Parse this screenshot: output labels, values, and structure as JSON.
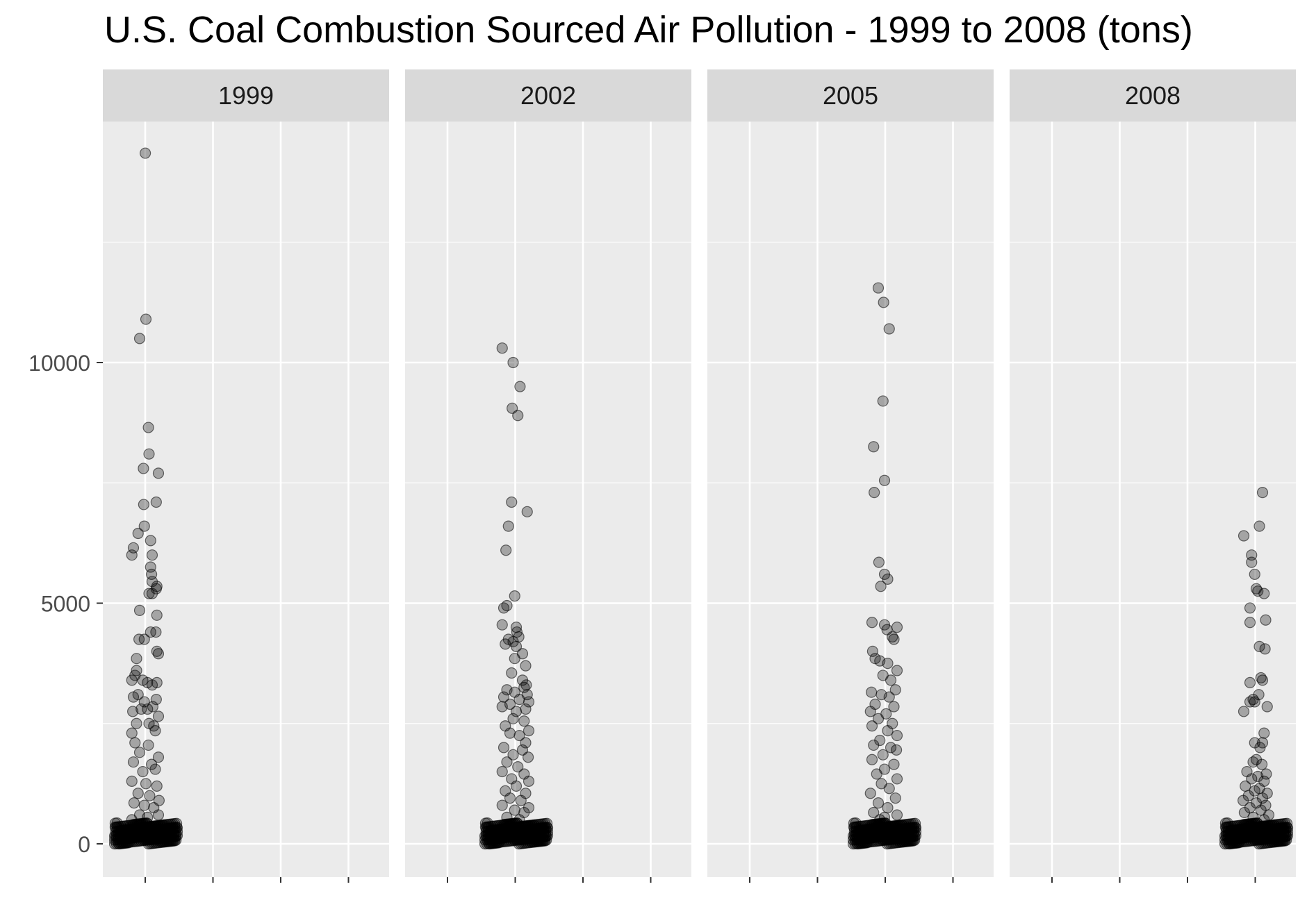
{
  "chart_data": {
    "type": "scatter",
    "title": "U.S. Coal Combustion Sourced Air Pollution - 1999 to 2008 (tons)",
    "xlabel": "",
    "ylabel": "",
    "facets": [
      "1999",
      "2002",
      "2005",
      "2008"
    ],
    "y_ticks": [
      0,
      5000,
      10000
    ],
    "y_tick_labels": [
      "0",
      "5000",
      "10000"
    ],
    "ylim": [
      -700,
      14900
    ],
    "grid": true,
    "point_color": "#000000",
    "point_opacity": 0.3,
    "panel_background": "#ebebeb",
    "strip_background": "#d9d9d9",
    "series": [
      {
        "facet": "1999",
        "points": [
          [
            -0.02,
            14350
          ],
          [
            -0.2,
            10500
          ],
          [
            0.0,
            10900
          ],
          [
            0.08,
            8650
          ],
          [
            0.1,
            8100
          ],
          [
            -0.08,
            7800
          ],
          [
            0.4,
            7700
          ],
          [
            -0.07,
            7050
          ],
          [
            0.33,
            7100
          ],
          [
            -0.05,
            6600
          ],
          [
            -0.25,
            6450
          ],
          [
            -0.4,
            6150
          ],
          [
            -0.45,
            6000
          ],
          [
            0.15,
            6300
          ],
          [
            0.2,
            6000
          ],
          [
            0.15,
            5750
          ],
          [
            0.18,
            5600
          ],
          [
            0.2,
            5450
          ],
          [
            0.35,
            5350
          ],
          [
            0.33,
            5300
          ],
          [
            0.1,
            5200
          ],
          [
            0.2,
            5200
          ],
          [
            0.35,
            4750
          ],
          [
            -0.2,
            4850
          ],
          [
            0.15,
            4400
          ],
          [
            0.32,
            4400
          ],
          [
            -0.22,
            4250
          ],
          [
            -0.05,
            4250
          ],
          [
            0.35,
            4000
          ],
          [
            0.4,
            3950
          ],
          [
            -0.3,
            3850
          ],
          [
            -0.35,
            3500
          ],
          [
            -0.3,
            3600
          ],
          [
            -0.45,
            3400
          ],
          [
            -0.1,
            3400
          ],
          [
            0.05,
            3350
          ],
          [
            0.2,
            3300
          ],
          [
            0.35,
            3350
          ],
          [
            -0.4,
            3050
          ],
          [
            -0.25,
            3100
          ],
          [
            -0.05,
            2950
          ],
          [
            0.33,
            3000
          ],
          [
            -0.42,
            2750
          ],
          [
            -0.15,
            2800
          ],
          [
            0.05,
            2800
          ],
          [
            0.22,
            2850
          ],
          [
            0.4,
            2650
          ],
          [
            -0.3,
            2500
          ],
          [
            0.1,
            2500
          ],
          [
            0.25,
            2450
          ],
          [
            -0.45,
            2300
          ],
          [
            0.3,
            2350
          ],
          [
            -0.35,
            2100
          ],
          [
            0.08,
            2050
          ],
          [
            -0.2,
            1900
          ],
          [
            0.4,
            1800
          ],
          [
            -0.4,
            1700
          ],
          [
            0.18,
            1650
          ],
          [
            -0.1,
            1500
          ],
          [
            0.3,
            1550
          ],
          [
            -0.45,
            1300
          ],
          [
            0.0,
            1250
          ],
          [
            0.35,
            1200
          ],
          [
            -0.25,
            1050
          ],
          [
            0.12,
            1000
          ],
          [
            0.42,
            900
          ],
          [
            -0.38,
            850
          ],
          [
            -0.05,
            800
          ],
          [
            0.25,
            750
          ],
          [
            -0.2,
            600
          ],
          [
            0.4,
            600
          ],
          [
            0.05,
            550
          ],
          [
            -0.45,
            500
          ]
        ]
      },
      {
        "facet": "2002",
        "points": [
          [
            -0.45,
            10300
          ],
          [
            -0.1,
            10000
          ],
          [
            0.12,
            9500
          ],
          [
            -0.13,
            9050
          ],
          [
            0.05,
            8900
          ],
          [
            -0.15,
            7100
          ],
          [
            0.35,
            6900
          ],
          [
            -0.25,
            6600
          ],
          [
            -0.33,
            6100
          ],
          [
            -0.05,
            5150
          ],
          [
            -0.3,
            4950
          ],
          [
            -0.4,
            4900
          ],
          [
            -0.45,
            4550
          ],
          [
            0.0,
            4500
          ],
          [
            0.02,
            4400
          ],
          [
            0.08,
            4300
          ],
          [
            -0.25,
            4250
          ],
          [
            -0.1,
            4200
          ],
          [
            -0.35,
            4150
          ],
          [
            0.0,
            4100
          ],
          [
            0.2,
            3950
          ],
          [
            -0.05,
            3850
          ],
          [
            0.3,
            3700
          ],
          [
            -0.15,
            3550
          ],
          [
            0.2,
            3400
          ],
          [
            0.32,
            3300
          ],
          [
            0.25,
            3250
          ],
          [
            -0.3,
            3200
          ],
          [
            -0.05,
            3150
          ],
          [
            0.35,
            3100
          ],
          [
            -0.4,
            3050
          ],
          [
            0.1,
            3000
          ],
          [
            0.4,
            2950
          ],
          [
            -0.2,
            2900
          ],
          [
            -0.45,
            2850
          ],
          [
            0.3,
            2800
          ],
          [
            0.0,
            2750
          ],
          [
            -0.1,
            2600
          ],
          [
            0.25,
            2550
          ],
          [
            -0.35,
            2450
          ],
          [
            0.4,
            2350
          ],
          [
            -0.2,
            2300
          ],
          [
            0.1,
            2250
          ],
          [
            0.3,
            2100
          ],
          [
            -0.4,
            2000
          ],
          [
            0.2,
            1950
          ],
          [
            -0.1,
            1850
          ],
          [
            0.38,
            1800
          ],
          [
            -0.3,
            1700
          ],
          [
            0.05,
            1600
          ],
          [
            -0.45,
            1500
          ],
          [
            0.25,
            1450
          ],
          [
            -0.15,
            1350
          ],
          [
            0.4,
            1300
          ],
          [
            0.0,
            1200
          ],
          [
            -0.35,
            1100
          ],
          [
            0.3,
            1050
          ],
          [
            -0.2,
            950
          ],
          [
            0.15,
            900
          ],
          [
            -0.45,
            800
          ],
          [
            0.4,
            750
          ],
          [
            -0.05,
            700
          ],
          [
            0.25,
            650
          ],
          [
            -0.3,
            550
          ],
          [
            0.1,
            500
          ]
        ]
      },
      {
        "facet": "2005",
        "points": [
          [
            -0.2,
            11550
          ],
          [
            -0.03,
            11250
          ],
          [
            0.15,
            10700
          ],
          [
            -0.05,
            9200
          ],
          [
            -0.35,
            8250
          ],
          [
            0.0,
            7550
          ],
          [
            -0.33,
            7300
          ],
          [
            -0.18,
            5850
          ],
          [
            0.0,
            5600
          ],
          [
            0.1,
            5500
          ],
          [
            -0.12,
            5350
          ],
          [
            -0.4,
            4600
          ],
          [
            0.0,
            4550
          ],
          [
            0.4,
            4500
          ],
          [
            0.08,
            4450
          ],
          [
            0.25,
            4300
          ],
          [
            0.3,
            4250
          ],
          [
            -0.38,
            4000
          ],
          [
            -0.3,
            3850
          ],
          [
            -0.15,
            3800
          ],
          [
            0.1,
            3750
          ],
          [
            0.4,
            3600
          ],
          [
            -0.05,
            3500
          ],
          [
            0.2,
            3400
          ],
          [
            0.35,
            3200
          ],
          [
            -0.42,
            3150
          ],
          [
            -0.1,
            3100
          ],
          [
            0.15,
            3050
          ],
          [
            -0.3,
            2900
          ],
          [
            0.3,
            2850
          ],
          [
            -0.45,
            2750
          ],
          [
            0.05,
            2700
          ],
          [
            -0.2,
            2600
          ],
          [
            0.25,
            2500
          ],
          [
            -0.4,
            2450
          ],
          [
            0.1,
            2350
          ],
          [
            0.4,
            2250
          ],
          [
            -0.15,
            2150
          ],
          [
            -0.35,
            2050
          ],
          [
            0.2,
            2000
          ],
          [
            0.38,
            1950
          ],
          [
            -0.05,
            1850
          ],
          [
            -0.4,
            1750
          ],
          [
            0.3,
            1650
          ],
          [
            0.0,
            1550
          ],
          [
            -0.25,
            1450
          ],
          [
            0.4,
            1350
          ],
          [
            -0.1,
            1250
          ],
          [
            0.15,
            1150
          ],
          [
            -0.45,
            1050
          ],
          [
            0.35,
            950
          ],
          [
            -0.2,
            850
          ],
          [
            0.1,
            750
          ],
          [
            -0.35,
            650
          ],
          [
            0.4,
            600
          ],
          [
            0.0,
            550
          ],
          [
            -0.15,
            500
          ]
        ]
      },
      {
        "facet": "2008",
        "points": [
          [
            0.2,
            7300
          ],
          [
            0.1,
            6600
          ],
          [
            -0.4,
            6400
          ],
          [
            -0.15,
            6000
          ],
          [
            -0.15,
            5850
          ],
          [
            -0.05,
            5600
          ],
          [
            0.0,
            5300
          ],
          [
            0.05,
            5250
          ],
          [
            0.25,
            5200
          ],
          [
            -0.2,
            4900
          ],
          [
            0.3,
            4650
          ],
          [
            -0.2,
            4600
          ],
          [
            0.1,
            4100
          ],
          [
            0.28,
            4050
          ],
          [
            0.15,
            3450
          ],
          [
            0.2,
            3400
          ],
          [
            -0.2,
            3350
          ],
          [
            -0.1,
            3000
          ],
          [
            0.08,
            3100
          ],
          [
            -0.05,
            2950
          ],
          [
            -0.2,
            2950
          ],
          [
            0.35,
            2850
          ],
          [
            -0.4,
            2750
          ],
          [
            0.25,
            2300
          ],
          [
            0.2,
            2100
          ],
          [
            -0.05,
            2100
          ],
          [
            0.12,
            2000
          ],
          [
            0.0,
            1750
          ],
          [
            -0.1,
            1700
          ],
          [
            0.18,
            1650
          ],
          [
            -0.3,
            1500
          ],
          [
            0.32,
            1450
          ],
          [
            0.05,
            1400
          ],
          [
            -0.15,
            1350
          ],
          [
            0.25,
            1300
          ],
          [
            -0.35,
            1200
          ],
          [
            0.1,
            1150
          ],
          [
            -0.05,
            1100
          ],
          [
            0.35,
            1050
          ],
          [
            -0.25,
            1000
          ],
          [
            0.2,
            950
          ],
          [
            -0.42,
            900
          ],
          [
            0.0,
            850
          ],
          [
            0.3,
            800
          ],
          [
            -0.2,
            750
          ],
          [
            0.15,
            700
          ],
          [
            -0.38,
            650
          ],
          [
            0.4,
            600
          ],
          [
            -0.1,
            550
          ],
          [
            0.25,
            500
          ]
        ]
      }
    ]
  }
}
